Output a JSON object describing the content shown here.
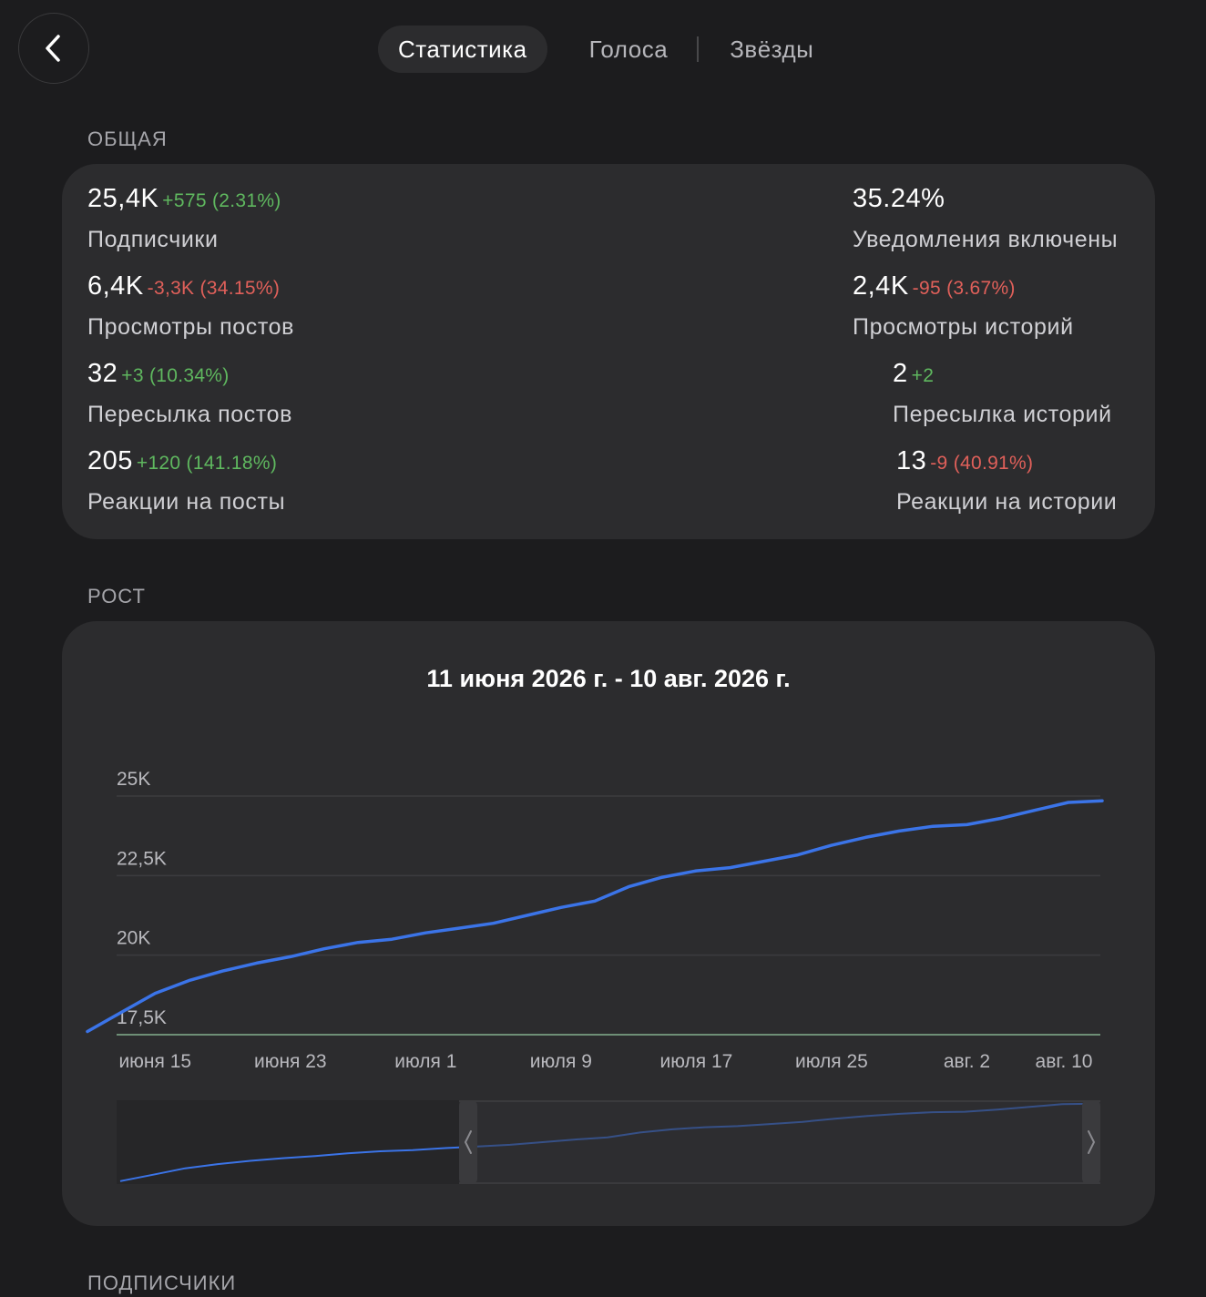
{
  "nav": {
    "back_icon": "chevron-left-icon",
    "tabs": [
      {
        "label": "Статистика",
        "active": true
      },
      {
        "label": "Голоса",
        "active": false
      },
      {
        "label": "Звёзды",
        "active": false
      }
    ]
  },
  "sections": {
    "overview": "ОБЩАЯ",
    "growth": "РОСТ",
    "subscribers": "ПОДПИСЧИКИ"
  },
  "stats": [
    {
      "value": "25,4K",
      "change": "+575",
      "percent": "(2.31%)",
      "trend": "positive",
      "label": "Подписчики"
    },
    {
      "value": "35.24%",
      "change": "",
      "percent": "",
      "trend": "",
      "label": "Уведомления включены"
    },
    {
      "value": "6,4K",
      "change": "-3,3K",
      "percent": "(34.15%)",
      "trend": "negative",
      "label": "Просмотры постов"
    },
    {
      "value": "2,4K",
      "change": "-95",
      "percent": "(3.67%)",
      "trend": "negative",
      "label": "Просмотры историй"
    },
    {
      "value": "32",
      "change": "+3",
      "percent": "(10.34%)",
      "trend": "positive",
      "label": "Пересылка постов"
    },
    {
      "value": "2",
      "change": "+2",
      "percent": "",
      "trend": "positive",
      "label": "Пересылка историй"
    },
    {
      "value": "205",
      "change": "+120",
      "percent": "(141.18%)",
      "trend": "positive",
      "label": "Реакции на посты"
    },
    {
      "value": "13",
      "change": "-9",
      "percent": "(40.91%)",
      "trend": "negative",
      "label": "Реакции на истории"
    }
  ],
  "colors": {
    "background": "#1c1c1e",
    "card": "#2c2c2e",
    "positive": "#5fb85f",
    "negative": "#e0605a",
    "line": "#3b74e8"
  },
  "chart_data": {
    "type": "line",
    "title": "11 июня 2026 г. - 10 авг. 2026 г.",
    "x_labels": [
      "июня 15",
      "июня 23",
      "июля 1",
      "июля 9",
      "июля 17",
      "июля 25",
      "авг. 2",
      "авг. 10"
    ],
    "y_ticks": [
      "17,5K",
      "20K",
      "22,5K",
      "25K"
    ],
    "ylim": [
      17500,
      25000
    ],
    "grid": true,
    "series": [
      {
        "x": [
          "2026-06-11",
          "2026-06-13",
          "2026-06-15",
          "2026-06-17",
          "2026-06-19",
          "2026-06-21",
          "2026-06-23",
          "2026-06-25",
          "2026-06-27",
          "2026-06-29",
          "2026-07-01",
          "2026-07-03",
          "2026-07-05",
          "2026-07-07",
          "2026-07-09",
          "2026-07-11",
          "2026-07-13",
          "2026-07-15",
          "2026-07-17",
          "2026-07-19",
          "2026-07-21",
          "2026-07-23",
          "2026-07-25",
          "2026-07-27",
          "2026-07-29",
          "2026-07-31",
          "2026-08-02",
          "2026-08-04",
          "2026-08-06",
          "2026-08-08",
          "2026-08-10"
        ],
        "values": [
          17600,
          18200,
          18800,
          19200,
          19500,
          19750,
          19950,
          20200,
          20400,
          20500,
          20700,
          20850,
          21000,
          21250,
          21500,
          21700,
          22150,
          22450,
          22650,
          22750,
          22950,
          23150,
          23450,
          23700,
          23900,
          24050,
          24100,
          24300,
          24550,
          24800,
          24850
        ]
      }
    ],
    "navigator": {
      "range_start": "2026-06-11",
      "range_end": "2026-08-10",
      "selection_start_fraction": 0.35,
      "selection_end_fraction": 1.0
    }
  }
}
